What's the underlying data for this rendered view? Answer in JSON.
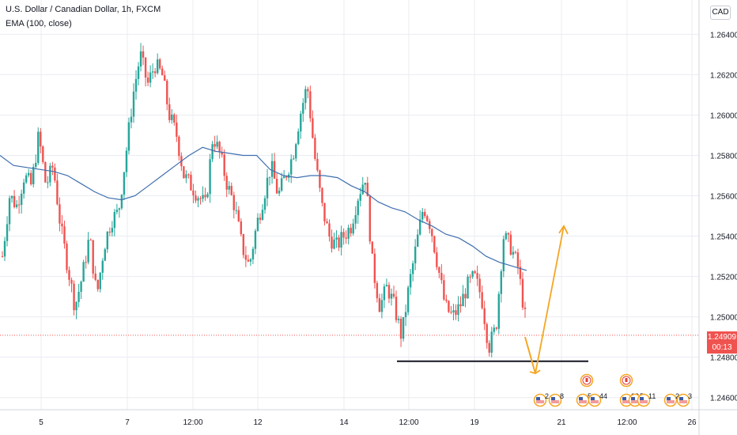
{
  "header": {
    "title": "U.S. Dollar / Canadian Dollar, 1h, FXCM",
    "indicator": "EMA (100, close)",
    "currency_button": "CAD"
  },
  "price_tag": {
    "price": "1.24909",
    "countdown": "00:13"
  },
  "chart_data": {
    "type": "candlestick",
    "title": "U.S. Dollar / Canadian Dollar, 1h, FXCM",
    "y_axis": {
      "range": [
        1.2454,
        1.2657
      ],
      "ticks": [
        "1.26400",
        "1.26200",
        "1.26000",
        "1.25800",
        "1.25600",
        "1.25400",
        "1.25200",
        "1.25000",
        "1.24800",
        "1.24600"
      ]
    },
    "x_axis": {
      "ticks": [
        "5",
        "7",
        "12:00",
        "12",
        "14",
        "12:00",
        "19",
        "21",
        "12:00",
        "26"
      ]
    },
    "anchors": [
      1.253,
      1.256,
      1.2555,
      1.257,
      1.2565,
      1.259,
      1.2565,
      1.2575,
      1.2545,
      1.2525,
      1.2505,
      1.252,
      1.254,
      1.251,
      1.2535,
      1.2548,
      1.2552,
      1.258,
      1.261,
      1.263,
      1.2615,
      1.2625,
      1.262,
      1.26,
      1.259,
      1.257,
      1.2565,
      1.256,
      1.2555,
      1.259,
      1.258,
      1.2565,
      1.2555,
      1.2535,
      1.2525,
      1.2545,
      1.256,
      1.2575,
      1.256,
      1.257,
      1.258,
      1.26,
      1.2615,
      1.258,
      1.2555,
      1.254,
      1.2535,
      1.254,
      1.2545,
      1.256,
      1.257,
      1.2525,
      1.2505,
      1.2515,
      1.2505,
      1.249,
      1.2515,
      1.2535,
      1.2555,
      1.2545,
      1.2525,
      1.2505,
      1.25,
      1.2505,
      1.2515,
      1.252,
      1.251,
      1.2485,
      1.2495,
      1.254,
      1.2535,
      1.2525,
      1.25
    ],
    "ema": {
      "label": "EMA (100, close)",
      "values": [
        1.258,
        1.2575,
        1.2574,
        1.2573,
        1.2572,
        1.257,
        1.2566,
        1.2562,
        1.2559,
        1.2558,
        1.256,
        1.2565,
        1.257,
        1.2575,
        1.258,
        1.2584,
        1.2582,
        1.2581,
        1.258,
        1.258,
        1.2573,
        1.257,
        1.2569,
        1.257,
        1.257,
        1.2569,
        1.2565,
        1.2562,
        1.2557,
        1.2554,
        1.2552,
        1.2548,
        1.2545,
        1.2541,
        1.2539,
        1.2535,
        1.253,
        1.2527,
        1.2525,
        1.2523
      ]
    },
    "support_line": {
      "price": 1.2478,
      "x_start": "12:00 (day 14)",
      "x_end": "day 21"
    },
    "projection": {
      "points": [
        1.249,
        1.2472,
        1.2545
      ]
    },
    "current_price": 1.24909,
    "grid": true,
    "event_flags": [
      {
        "flag": "US",
        "count": "2"
      },
      {
        "flag": "US",
        "count": "8"
      },
      {
        "flag": "CA",
        "count": ""
      },
      {
        "flag": "US",
        "count": "5"
      },
      {
        "flag": "US",
        "count": "44"
      },
      {
        "flag": "CA",
        "count": ""
      },
      {
        "flag": "US",
        "count": "28"
      },
      {
        "flag": "US",
        "count": "5"
      },
      {
        "flag": "US",
        "count": "11"
      },
      {
        "flag": "US",
        "count": "2"
      },
      {
        "flag": "US",
        "count": "3"
      }
    ],
    "colors": {
      "up": "#26a69a",
      "down": "#ef5350",
      "ema": "#3f6fae",
      "support": "#131722",
      "projection": "#f5a623",
      "grid": "#e9ecf2",
      "price_line": "#ef5350"
    }
  }
}
